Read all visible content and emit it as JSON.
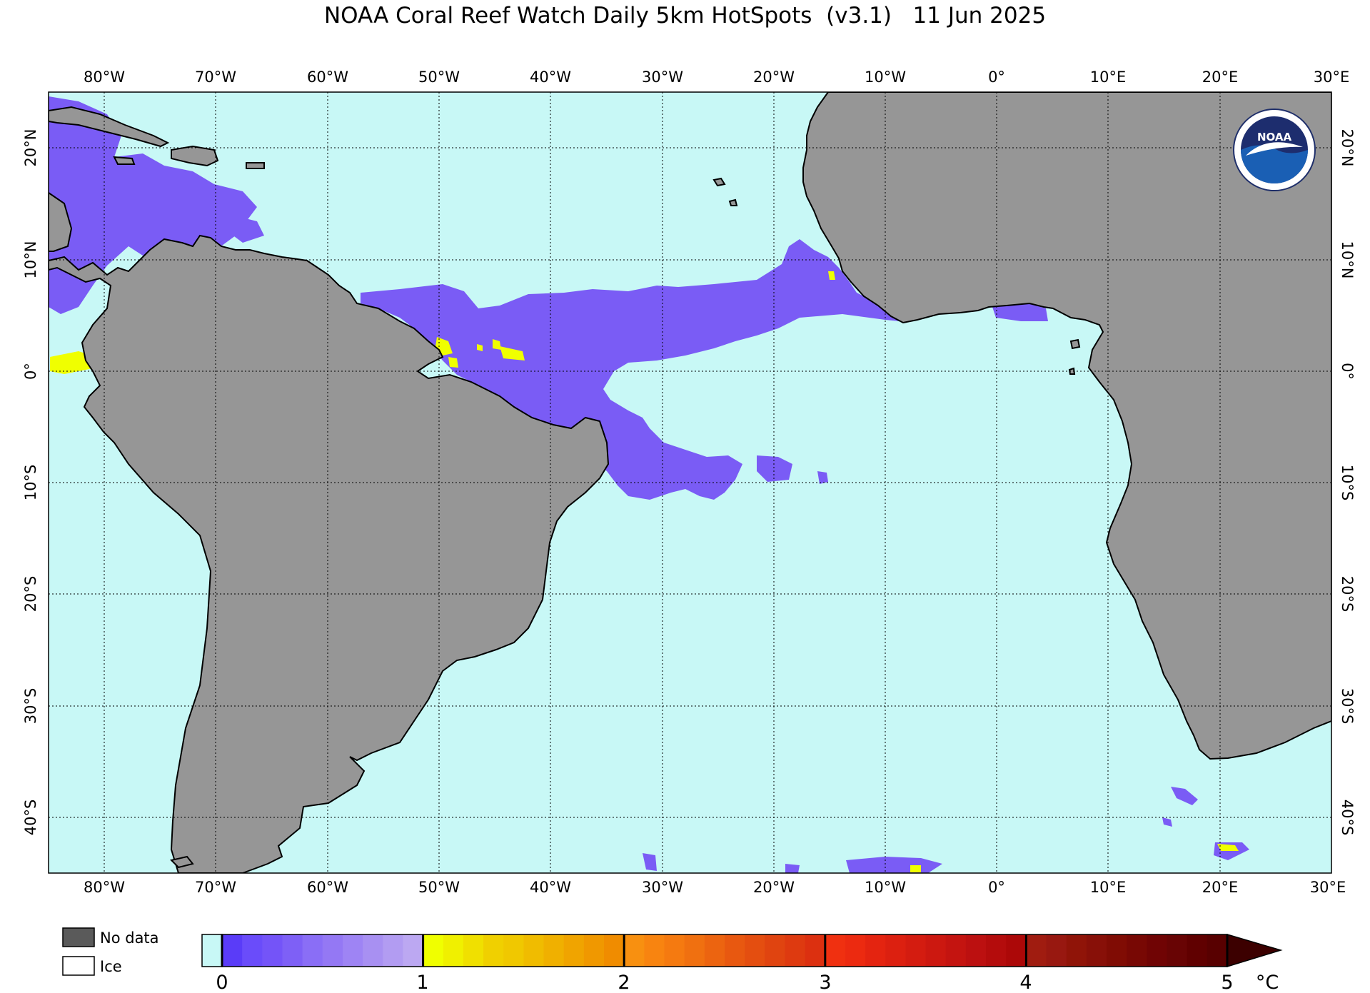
{
  "title": "NOAA Coral Reef Watch Daily 5km HotSpots  (v3.1)   11 Jun 2025",
  "map": {
    "projection": "equirectangular",
    "lon_range": [
      -85,
      30
    ],
    "lat_range": [
      -45,
      25
    ],
    "grid": "dotted",
    "ocean_color": "#c8f8f6",
    "land_color": "#969696",
    "lon_labels": [
      "80°W",
      "70°W",
      "60°W",
      "50°W",
      "40°W",
      "30°W",
      "20°W",
      "10°W",
      "0°",
      "10°E",
      "20°E",
      "30°E"
    ],
    "lat_labels": [
      "20°N",
      "10°N",
      "0°",
      "10°S",
      "20°S",
      "30°S",
      "40°S"
    ],
    "hotspot_regions": [
      {
        "name": "equatorial-atlantic-band",
        "level": "0-1"
      },
      {
        "name": "caribbean",
        "level": "0-1"
      },
      {
        "name": "eastern-pacific-panama",
        "level": "1-2"
      },
      {
        "name": "amazon-mouth",
        "level": "1-2"
      },
      {
        "name": "south-atlantic-subtropical",
        "level": "0-1"
      }
    ]
  },
  "logo": {
    "text": "NOAA",
    "icon": "noaa-logo-icon"
  },
  "legend": {
    "no_data_label": "No data",
    "ice_label": "Ice",
    "no_data_color": "#5a5a5a",
    "ice_color": "#ffffff"
  },
  "colorbar": {
    "ticks": [
      "0",
      "1",
      "2",
      "3",
      "4",
      "5"
    ],
    "unit": "°C",
    "zero_color": "#c8f8f6",
    "segments": [
      {
        "from": 0,
        "to": 1,
        "colors": [
          "#5a3cf8",
          "#6a4cfa",
          "#7454f8",
          "#7e60f6",
          "#8a6ef6",
          "#9478f4",
          "#9e84f4",
          "#a890f2",
          "#b29cf2",
          "#bca8f2"
        ]
      },
      {
        "from": 1,
        "to": 2,
        "colors": [
          "#f0ff00",
          "#f0f000",
          "#f0e000",
          "#f0d000",
          "#f0c800",
          "#f0bc00",
          "#f0b000",
          "#f0a400",
          "#f09800",
          "#f08c00"
        ]
      },
      {
        "from": 2,
        "to": 3,
        "colors": [
          "#f89010",
          "#f88410",
          "#f57a10",
          "#f07010",
          "#ec6410",
          "#e85810",
          "#e44e10",
          "#e04410",
          "#de3a10",
          "#dc3010"
        ]
      },
      {
        "from": 3,
        "to": 4,
        "colors": [
          "#f03010",
          "#ec2a10",
          "#e42410",
          "#dc2010",
          "#d41c10",
          "#cc1810",
          "#c41410",
          "#bc1010",
          "#b40c0c",
          "#ac0808"
        ]
      },
      {
        "from": 4,
        "to": 5,
        "colors": [
          "#a01c10",
          "#981810",
          "#901408",
          "#881008",
          "#800c04",
          "#780804",
          "#700404",
          "#680404",
          "#600000",
          "#580000"
        ]
      }
    ],
    "extend_color": "#3c0000"
  }
}
